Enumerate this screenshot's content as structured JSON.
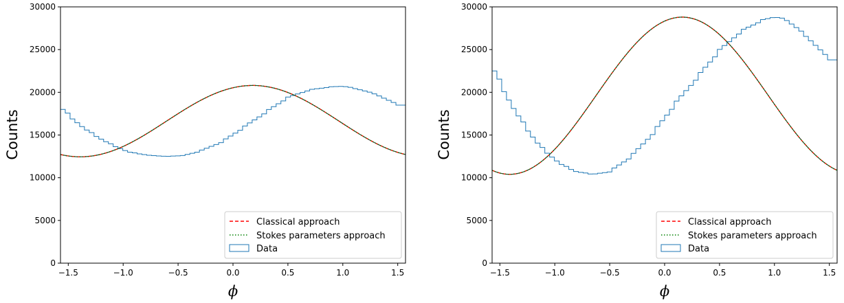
{
  "chart_data": [
    {
      "type": "line",
      "xlabel": "ϕ",
      "ylabel": "Counts",
      "xlim": [
        -1.5708,
        1.5708
      ],
      "ylim": [
        0,
        30000
      ],
      "xticks": [
        "−1.5",
        "−1.0",
        "−0.5",
        "0.0",
        "0.5",
        "1.0",
        "1.5"
      ],
      "xtick_values": [
        -1.5,
        -1.0,
        -0.5,
        0.0,
        0.5,
        1.0,
        1.5
      ],
      "yticks": [
        "0",
        "5000",
        "10000",
        "15000",
        "20000",
        "25000",
        "30000"
      ],
      "ytick_values": [
        0,
        5000,
        10000,
        15000,
        20000,
        25000,
        30000
      ],
      "grid": false,
      "legend_position": "lower-right",
      "model": {
        "offset": 16625,
        "amplitude": 4175,
        "phase_rad": 0.18
      },
      "series": [
        {
          "name": "Classical approach",
          "style": "dashed",
          "color": "#ff0000"
        },
        {
          "name": "Stokes parameters approach",
          "style": "dotted",
          "color": "#008000"
        },
        {
          "name": "Data",
          "style": "step",
          "color": "#1f77b4",
          "x": [
            -1.55,
            -1.35,
            -1.15,
            -0.95,
            -0.75,
            -0.6,
            -0.45,
            -0.3,
            -0.1,
            0.1,
            0.3,
            0.5,
            0.7,
            0.9,
            1.0,
            1.1,
            1.3,
            1.5
          ],
          "y": [
            18000,
            15700,
            14150,
            13000,
            12600,
            12500,
            12600,
            13100,
            14200,
            15900,
            17700,
            19400,
            20300,
            20650,
            20700,
            20500,
            19800,
            18500
          ]
        }
      ]
    },
    {
      "type": "line",
      "xlabel": "ϕ",
      "ylabel": "Counts",
      "xlim": [
        -1.5708,
        1.5708
      ],
      "ylim": [
        0,
        30000
      ],
      "xticks": [
        "−1.5",
        "−1.0",
        "−0.5",
        "0.0",
        "0.5",
        "1.0",
        "1.5"
      ],
      "xtick_values": [
        -1.5,
        -1.0,
        -0.5,
        0.0,
        0.5,
        1.0,
        1.5
      ],
      "yticks": [
        "0",
        "5000",
        "10000",
        "15000",
        "20000",
        "25000",
        "30000"
      ],
      "ytick_values": [
        0,
        5000,
        10000,
        15000,
        20000,
        25000,
        30000
      ],
      "grid": false,
      "legend_position": "lower-right",
      "model": {
        "offset": 19600,
        "amplitude": 9200,
        "phase_rad": 0.16
      },
      "series": [
        {
          "name": "Classical approach",
          "style": "dashed",
          "color": "#ff0000"
        },
        {
          "name": "Stokes parameters approach",
          "style": "dotted",
          "color": "#008000"
        },
        {
          "name": "Data",
          "style": "step",
          "color": "#1f77b4",
          "x": [
            -1.55,
            -1.35,
            -1.15,
            -0.95,
            -0.8,
            -0.65,
            -0.5,
            -0.3,
            -0.1,
            0.1,
            0.3,
            0.5,
            0.7,
            0.9,
            1.0,
            1.1,
            1.3,
            1.5
          ],
          "y": [
            22500,
            17500,
            13900,
            11600,
            10700,
            10400,
            10700,
            12500,
            15300,
            18700,
            21800,
            24900,
            27200,
            28500,
            28800,
            28600,
            26500,
            23800
          ]
        }
      ]
    }
  ]
}
